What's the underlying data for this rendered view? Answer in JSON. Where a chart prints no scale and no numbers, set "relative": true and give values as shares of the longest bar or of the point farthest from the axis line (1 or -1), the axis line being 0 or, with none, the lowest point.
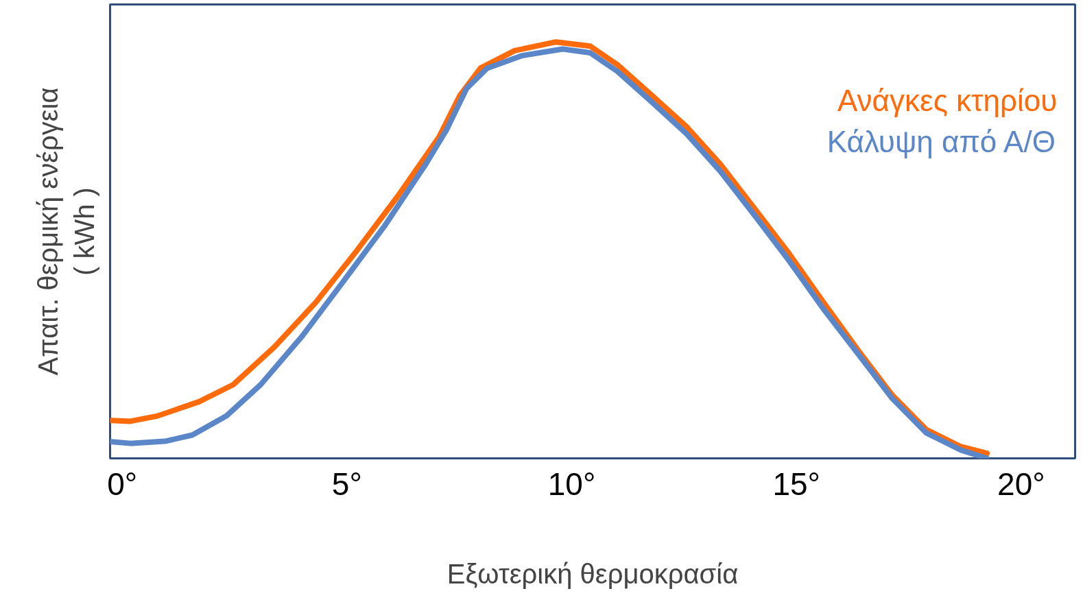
{
  "chart_data": {
    "type": "line",
    "relative": true,
    "xlabel": "Εξωτερική θερμοκρασία",
    "ylabel": "Απαιτ. θερμική ενέργεια\n( kWh )",
    "xlim": [
      -0.27,
      21.2
    ],
    "xticks": [
      {
        "value": 0,
        "label": "0°"
      },
      {
        "value": 5,
        "label": "5°"
      },
      {
        "value": 10,
        "label": "10°"
      },
      {
        "value": 15,
        "label": "15°"
      },
      {
        "value": 20,
        "label": "20°"
      }
    ],
    "grid": false,
    "legend": "top right",
    "line_style": "solid",
    "marker": "none",
    "series": [
      {
        "name": "Ανάγκες κτηρίου",
        "color": "#ff6a0a",
        "x": [
          -0.24,
          0.18,
          0.79,
          1.71,
          2.47,
          3.39,
          4.31,
          5.22,
          6.14,
          7.05,
          7.51,
          7.97,
          8.73,
          9.65,
          10.41,
          11.02,
          11.79,
          12.55,
          13.31,
          14.08,
          14.84,
          15.6,
          16.37,
          17.13,
          17.89,
          18.66,
          19.24
        ],
        "values": [
          0.091,
          0.089,
          0.102,
          0.136,
          0.177,
          0.268,
          0.375,
          0.499,
          0.631,
          0.772,
          0.871,
          0.937,
          0.979,
          1.0,
          0.99,
          0.945,
          0.871,
          0.797,
          0.706,
          0.598,
          0.491,
          0.375,
          0.26,
          0.152,
          0.069,
          0.028,
          0.012
        ]
      },
      {
        "name": "Κάλυψη από Α/Θ",
        "color": "#5b87c8",
        "x": [
          -0.24,
          0.18,
          0.95,
          1.56,
          2.32,
          3.08,
          4.0,
          4.92,
          5.83,
          6.75,
          7.21,
          7.66,
          8.12,
          8.89,
          9.8,
          10.41,
          11.02,
          11.79,
          12.55,
          13.31,
          14.08,
          14.84,
          15.6,
          16.37,
          17.13,
          17.89,
          18.66,
          19.24
        ],
        "values": [
          0.04,
          0.036,
          0.041,
          0.056,
          0.102,
          0.177,
          0.293,
          0.425,
          0.557,
          0.706,
          0.788,
          0.888,
          0.937,
          0.967,
          0.983,
          0.974,
          0.929,
          0.855,
          0.78,
          0.689,
          0.582,
          0.474,
          0.359,
          0.251,
          0.144,
          0.061,
          0.02,
          0.0
        ]
      }
    ]
  }
}
